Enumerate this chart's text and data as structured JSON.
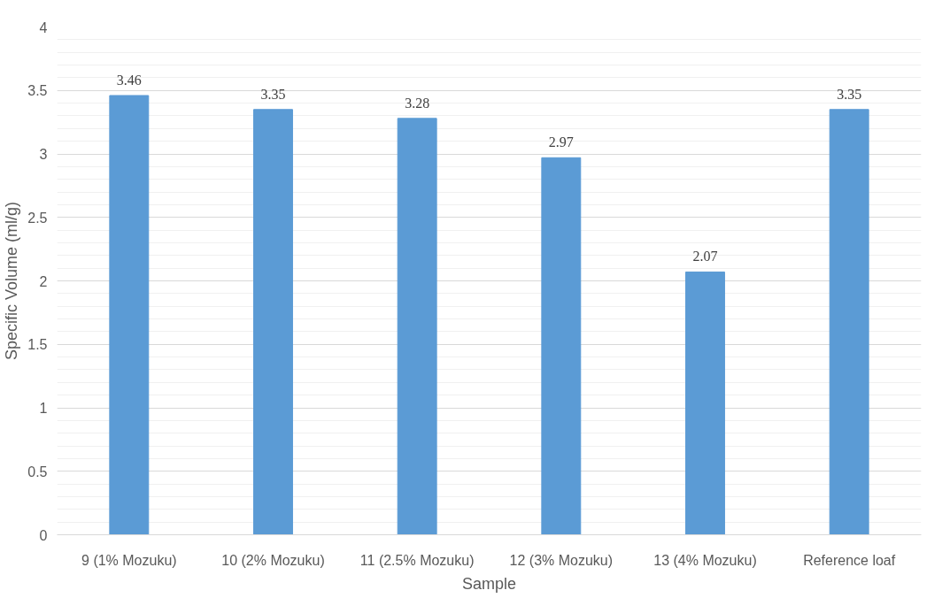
{
  "chart_data": {
    "type": "bar",
    "xlabel": "Sample",
    "ylabel": "Specific Volume (ml/g)",
    "categories": [
      "9 (1% Mozuku)",
      "10 (2% Mozuku)",
      "11 (2.5% Mozuku)",
      "12 (3% Mozuku)",
      "13 (4% Mozuku)",
      "Reference loaf"
    ],
    "values": [
      3.46,
      3.35,
      3.28,
      2.97,
      2.07,
      3.35
    ],
    "color": "#5b9bd5",
    "ylim": [
      0,
      4
    ],
    "yticks": [
      0,
      0.5,
      1,
      1.5,
      2,
      2.5,
      3,
      3.5,
      4
    ],
    "grid": "y",
    "data_labels": true
  }
}
